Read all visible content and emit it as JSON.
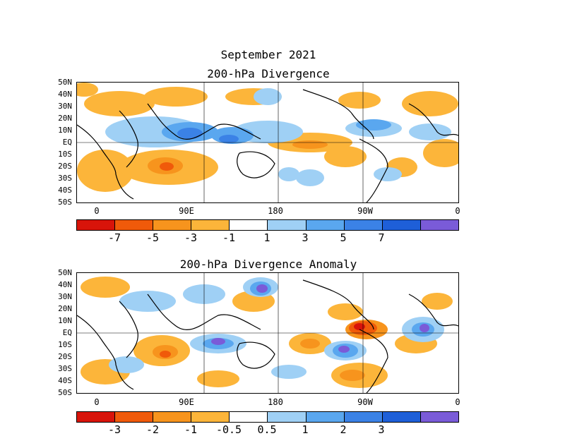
{
  "title": "September 2021",
  "panels": [
    {
      "subtitle": "200-hPa Divergence",
      "lat_labels": [
        "50N",
        "40N",
        "30N",
        "20N",
        "10N",
        "EQ",
        "10S",
        "20S",
        "30S",
        "40S",
        "50S"
      ],
      "lon_labels": [
        "0",
        "90E",
        "180",
        "90W",
        "0"
      ],
      "colorbar": {
        "colors": [
          "#d8140a",
          "#f05a0a",
          "#f7941d",
          "#fcb53a",
          "#ffffff",
          "#9fd0f5",
          "#5aa7ef",
          "#3b82e6",
          "#1e5fd8",
          "#7a5bd8"
        ],
        "labels": [
          "-7",
          "-5",
          "-3",
          "-1",
          "1",
          "3",
          "5",
          "7"
        ]
      }
    },
    {
      "subtitle": "200-hPa Divergence Anomaly",
      "lat_labels": [
        "50N",
        "40N",
        "30N",
        "20N",
        "10N",
        "EQ",
        "10S",
        "20S",
        "30S",
        "40S",
        "50S"
      ],
      "lon_labels": [
        "0",
        "90E",
        "180",
        "90W",
        "0"
      ],
      "colorbar": {
        "colors": [
          "#d8140a",
          "#f05a0a",
          "#f7941d",
          "#fcb53a",
          "#ffffff",
          "#9fd0f5",
          "#5aa7ef",
          "#3b82e6",
          "#1e5fd8",
          "#7a5bd8"
        ],
        "labels": [
          "-3",
          "-2",
          "-1",
          "-0.5",
          "0.5",
          "1",
          "2",
          "3"
        ]
      }
    }
  ]
}
